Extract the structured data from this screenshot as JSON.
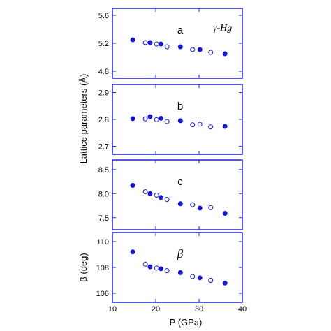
{
  "chart_data": {
    "type": "scatter",
    "xlabel": "P (GPa)",
    "xlim": [
      10,
      40
    ],
    "xticks": [
      10,
      20,
      30,
      40
    ],
    "ylabel_shared": "Lattice parameters (Å)",
    "annotation": "γ-Hg",
    "colors": {
      "frame": "#2222cc",
      "marker": "#1a1acc"
    },
    "panels": [
      {
        "label": "a",
        "ylabel": "",
        "ylim": [
          4.7,
          5.7
        ],
        "yticks": [
          "4.8",
          "5.2",
          "5.6"
        ],
        "series": [
          {
            "name": "",
            "marker": "filled",
            "x": [
              14.7,
              18.7,
              21.2,
              25.7,
              30.2,
              36.0
            ],
            "y": [
              5.25,
              5.21,
              5.19,
              5.15,
              5.11,
              5.05
            ]
          },
          {
            "name": "",
            "marker": "open",
            "x": [
              17.6,
              20.2,
              22.6,
              28.5,
              32.7
            ],
            "y": [
              5.21,
              5.19,
              5.15,
              5.11,
              5.07
            ]
          }
        ]
      },
      {
        "label": "b",
        "ylabel": "",
        "ylim": [
          2.67,
          2.93
        ],
        "yticks": [
          "2.7",
          "2.8",
          "2.9"
        ],
        "series": [
          {
            "name": "",
            "marker": "filled",
            "x": [
              14.7,
              18.7,
              21.2,
              25.7,
              36.0
            ],
            "y": [
              2.803,
              2.81,
              2.804,
              2.795,
              2.774
            ]
          },
          {
            "name": "",
            "marker": "open",
            "x": [
              17.6,
              20.2,
              22.6,
              28.5,
              30.2,
              32.7
            ],
            "y": [
              2.802,
              2.799,
              2.792,
              2.78,
              2.782,
              2.772
            ]
          }
        ]
      },
      {
        "label": "c",
        "ylabel": "",
        "ylim": [
          7.25,
          8.7
        ],
        "yticks": [
          "7.5",
          "8.0",
          "8.5"
        ],
        "series": [
          {
            "name": "",
            "marker": "filled",
            "x": [
              14.7,
              18.7,
              21.2,
              25.7,
              30.2,
              36.0
            ],
            "y": [
              8.17,
              8.0,
              7.92,
              7.79,
              7.7,
              7.59
            ]
          },
          {
            "name": "",
            "marker": "open",
            "x": [
              17.6,
              20.2,
              22.6,
              28.5,
              32.7
            ],
            "y": [
              8.04,
              7.97,
              7.88,
              7.77,
              7.71
            ]
          }
        ]
      },
      {
        "label": "β",
        "ylabel": "β (deg)",
        "ylim": [
          105.3,
          110.7
        ],
        "yticks": [
          "106",
          "108",
          "110"
        ],
        "series": [
          {
            "name": "",
            "marker": "filled",
            "x": [
              14.7,
              18.7,
              21.2,
              25.7,
              30.2,
              36.0
            ],
            "y": [
              109.2,
              108.05,
              107.9,
              107.6,
              107.2,
              106.8
            ]
          },
          {
            "name": "",
            "marker": "open",
            "x": [
              17.6,
              20.2,
              22.6,
              28.5,
              32.7
            ],
            "y": [
              108.25,
              107.95,
              107.75,
              107.3,
              107.0
            ]
          }
        ]
      }
    ]
  }
}
